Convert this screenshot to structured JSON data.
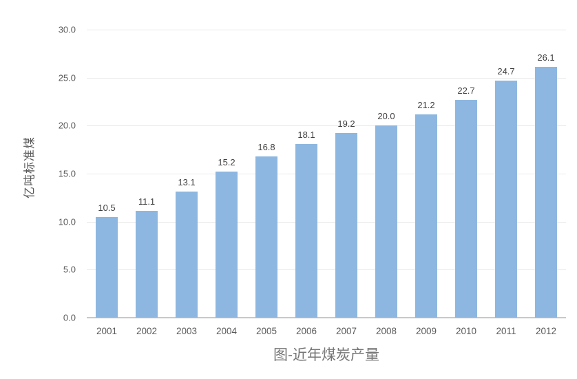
{
  "chart_data": {
    "type": "bar",
    "title": "图-近年煤炭产量",
    "ylabel": "亿吨标准煤",
    "xlabel": "",
    "categories": [
      "2001",
      "2002",
      "2003",
      "2004",
      "2005",
      "2006",
      "2007",
      "2008",
      "2009",
      "2010",
      "2011",
      "2012"
    ],
    "values": [
      10.5,
      11.1,
      13.1,
      15.2,
      16.8,
      18.1,
      19.2,
      20.0,
      21.2,
      22.7,
      24.7,
      26.1
    ],
    "value_labels": [
      "10.5",
      "11.1",
      "13.1",
      "15.2",
      "16.8",
      "18.1",
      "19.2",
      "20.0",
      "21.2",
      "22.7",
      "24.7",
      "26.1"
    ],
    "ytick_labels": [
      "0.0",
      "5.0",
      "10.0",
      "15.0",
      "20.0",
      "25.0",
      "30.0"
    ],
    "ytick_values": [
      0,
      5,
      10,
      15,
      20,
      25,
      30
    ],
    "ylim": [
      0,
      30
    ],
    "grid": "horizontal",
    "legend": "none",
    "colors": {
      "bar_fill": "#8DB7E0",
      "gridline": "#E9E9E9",
      "axis_line": "#C8C8C8",
      "tick_text": "#595959",
      "value_text": "#3F3F3F",
      "title_text": "#767676"
    }
  }
}
